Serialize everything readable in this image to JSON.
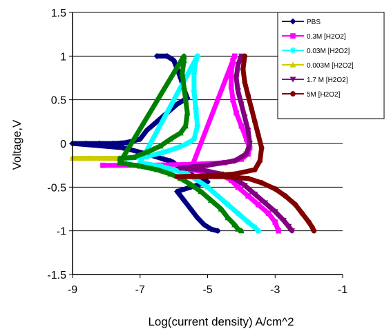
{
  "chart_data": {
    "type": "scatter",
    "title": "",
    "xlabel": "Log(current density) A/cm^2",
    "ylabel": "Voltage,V",
    "xlim": [
      -9,
      -1
    ],
    "ylim": [
      -1.5,
      1.5
    ],
    "xticks": [
      "-9",
      "-7",
      "-5",
      "-3",
      "-1"
    ],
    "yticks": [
      "1.5",
      "1",
      "0.5",
      "0",
      "-0.5",
      "-1",
      "-1.5"
    ],
    "grid": "horizontal",
    "legend_position": "top-right",
    "series": [
      {
        "name": "PBS",
        "color": "#000080",
        "marker": "diamond",
        "points": [
          [
            -6.5,
            1.0
          ],
          [
            -6.2,
            1.0
          ],
          [
            -6.0,
            0.95
          ],
          [
            -5.9,
            0.85
          ],
          [
            -5.8,
            0.75
          ],
          [
            -5.7,
            0.62
          ],
          [
            -5.6,
            0.52
          ],
          [
            -5.9,
            0.45
          ],
          [
            -6.2,
            0.35
          ],
          [
            -6.5,
            0.25
          ],
          [
            -6.8,
            0.15
          ],
          [
            -7.0,
            0.05
          ],
          [
            -7.4,
            0.01
          ],
          [
            -7.8,
            0.0
          ],
          [
            -8.2,
            0.0
          ],
          [
            -8.6,
            0.0
          ],
          [
            -9.0,
            0.0
          ],
          [
            -7.5,
            -0.05
          ],
          [
            -6.8,
            -0.12
          ],
          [
            -6.3,
            -0.18
          ],
          [
            -6.1,
            -0.2
          ],
          [
            -6.0,
            -0.22
          ],
          [
            -5.9,
            -0.26
          ],
          [
            -5.7,
            -0.3
          ],
          [
            -5.5,
            -0.35
          ],
          [
            -5.3,
            -0.4
          ],
          [
            -5.0,
            -0.44
          ],
          [
            -5.5,
            -0.5
          ],
          [
            -5.9,
            -0.55
          ],
          [
            -5.7,
            -0.65
          ],
          [
            -5.5,
            -0.75
          ],
          [
            -5.3,
            -0.85
          ],
          [
            -5.1,
            -0.93
          ],
          [
            -4.9,
            -0.98
          ],
          [
            -4.7,
            -1.0
          ]
        ]
      },
      {
        "name": "0.3M [H2O2]",
        "color": "#ff00ff",
        "marker": "square",
        "points": [
          [
            -8.1,
            -0.25
          ],
          [
            -7.0,
            -0.25
          ],
          [
            -5.5,
            -0.24
          ],
          [
            -4.5,
            -0.22
          ],
          [
            -4.0,
            -0.18
          ],
          [
            -3.8,
            -0.12
          ],
          [
            -3.75,
            -0.05
          ],
          [
            -3.85,
            0.05
          ],
          [
            -4.0,
            0.2
          ],
          [
            -4.15,
            0.35
          ],
          [
            -4.25,
            0.5
          ],
          [
            -4.3,
            0.65
          ],
          [
            -4.3,
            0.8
          ],
          [
            -4.25,
            0.95
          ],
          [
            -4.2,
            1.0
          ],
          [
            -5.5,
            -0.3
          ],
          [
            -5.0,
            -0.33
          ],
          [
            -4.6,
            -0.36
          ],
          [
            -4.3,
            -0.42
          ],
          [
            -4.1,
            -0.5
          ],
          [
            -3.8,
            -0.6
          ],
          [
            -3.5,
            -0.7
          ],
          [
            -3.2,
            -0.8
          ],
          [
            -3.0,
            -0.9
          ],
          [
            -2.9,
            -1.0
          ]
        ]
      },
      {
        "name": "0.03M [H2O2]",
        "color": "#00ffff",
        "marker": "star",
        "points": [
          [
            -7.4,
            -0.17
          ],
          [
            -6.8,
            -0.15
          ],
          [
            -6.3,
            -0.1
          ],
          [
            -5.9,
            -0.05
          ],
          [
            -5.6,
            0.0
          ],
          [
            -5.4,
            0.05
          ],
          [
            -5.3,
            0.2
          ],
          [
            -5.35,
            0.4
          ],
          [
            -5.4,
            0.6
          ],
          [
            -5.4,
            0.8
          ],
          [
            -5.35,
            0.95
          ],
          [
            -5.3,
            1.0
          ],
          [
            -7.0,
            -0.22
          ],
          [
            -6.4,
            -0.26
          ],
          [
            -6.0,
            -0.3
          ],
          [
            -5.6,
            -0.35
          ],
          [
            -5.3,
            -0.42
          ],
          [
            -5.0,
            -0.5
          ],
          [
            -4.7,
            -0.6
          ],
          [
            -4.4,
            -0.7
          ],
          [
            -4.1,
            -0.8
          ],
          [
            -3.8,
            -0.9
          ],
          [
            -3.6,
            -0.96
          ],
          [
            -3.5,
            -1.0
          ]
        ]
      },
      {
        "name": "0.003M [H2O2]",
        "color": "#cccc00",
        "marker": "triangle",
        "points": [
          [
            -9.0,
            -0.17
          ],
          [
            -8.5,
            -0.17
          ],
          [
            -8.0,
            -0.17
          ],
          [
            -7.5,
            -0.17
          ]
        ]
      },
      {
        "name": "",
        "color": "#008000",
        "marker": "triangle",
        "points": [
          [
            -7.6,
            -0.17
          ],
          [
            -7.2,
            -0.16
          ],
          [
            -6.8,
            -0.1
          ],
          [
            -6.4,
            -0.03
          ],
          [
            -6.1,
            0.05
          ],
          [
            -5.8,
            0.12
          ],
          [
            -5.65,
            0.2
          ],
          [
            -5.6,
            0.35
          ],
          [
            -5.65,
            0.5
          ],
          [
            -5.7,
            0.65
          ],
          [
            -5.75,
            0.8
          ],
          [
            -5.7,
            0.95
          ],
          [
            -5.7,
            1.0
          ],
          [
            -7.6,
            -0.22
          ],
          [
            -7.0,
            -0.26
          ],
          [
            -6.5,
            -0.3
          ],
          [
            -6.1,
            -0.35
          ],
          [
            -5.8,
            -0.4
          ],
          [
            -5.5,
            -0.47
          ],
          [
            -5.2,
            -0.55
          ],
          [
            -4.9,
            -0.65
          ],
          [
            -4.6,
            -0.75
          ],
          [
            -4.4,
            -0.85
          ],
          [
            -4.2,
            -0.93
          ],
          [
            -4.1,
            -0.98
          ],
          [
            -4.0,
            -1.0
          ]
        ]
      },
      {
        "name": "1.7 M [H2O2]",
        "color": "#800080",
        "marker": "triangle-down",
        "points": [
          [
            -4.0,
            1.0
          ],
          [
            -4.1,
            0.9
          ],
          [
            -4.15,
            0.75
          ],
          [
            -4.1,
            0.6
          ],
          [
            -4.0,
            0.45
          ],
          [
            -3.9,
            0.3
          ],
          [
            -3.8,
            0.15
          ],
          [
            -3.75,
            0.0
          ],
          [
            -3.85,
            -0.12
          ],
          [
            -4.2,
            -0.2
          ],
          [
            -5.0,
            -0.25
          ],
          [
            -5.8,
            -0.28
          ],
          [
            -5.2,
            -0.3
          ],
          [
            -4.6,
            -0.35
          ],
          [
            -4.2,
            -0.4
          ],
          [
            -3.9,
            -0.48
          ],
          [
            -3.6,
            -0.58
          ],
          [
            -3.3,
            -0.68
          ],
          [
            -3.0,
            -0.78
          ],
          [
            -2.75,
            -0.88
          ],
          [
            -2.6,
            -0.95
          ],
          [
            -2.5,
            -1.0
          ]
        ]
      },
      {
        "name": "5M [H2O2]",
        "color": "#800000",
        "marker": "circle",
        "points": [
          [
            -3.9,
            1.0
          ],
          [
            -3.95,
            0.85
          ],
          [
            -3.9,
            0.7
          ],
          [
            -3.8,
            0.55
          ],
          [
            -3.7,
            0.4
          ],
          [
            -3.6,
            0.25
          ],
          [
            -3.5,
            0.1
          ],
          [
            -3.4,
            -0.05
          ],
          [
            -3.45,
            -0.2
          ],
          [
            -3.6,
            -0.3
          ],
          [
            -4.2,
            -0.35
          ],
          [
            -5.0,
            -0.37
          ],
          [
            -5.9,
            -0.38
          ],
          [
            -4.5,
            -0.38
          ],
          [
            -3.8,
            -0.4
          ],
          [
            -3.4,
            -0.45
          ],
          [
            -3.0,
            -0.52
          ],
          [
            -2.7,
            -0.6
          ],
          [
            -2.4,
            -0.7
          ],
          [
            -2.2,
            -0.8
          ],
          [
            -2.0,
            -0.9
          ],
          [
            -1.9,
            -0.96
          ],
          [
            -1.85,
            -1.0
          ]
        ]
      }
    ]
  }
}
